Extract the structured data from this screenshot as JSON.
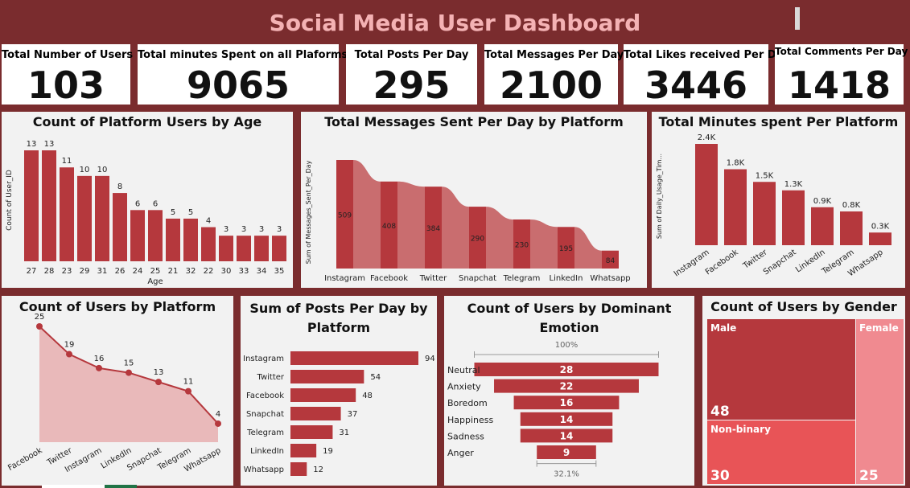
{
  "title": "Social Media User Dashboard",
  "kpis": [
    {
      "label": "Total Number of Users",
      "value": "103"
    },
    {
      "label": "Total minutes Spent on all Plaforms",
      "value": "9065"
    },
    {
      "label": "Total Posts Per Day",
      "value": "295"
    },
    {
      "label": "Total Messages Per Day",
      "value": "2100"
    },
    {
      "label": "Total Likes received Per Day",
      "value": "3446"
    },
    {
      "label": "Total Comments Per Day",
      "value": "1418"
    }
  ],
  "colors": {
    "bar": "#b5383d",
    "ribbon": "#c96d6f",
    "area": "#e9b9ba",
    "line": "#b5383d",
    "male": "#b5383d",
    "female": "#f08a90",
    "nonbinary": "#e85457"
  },
  "chart_data": [
    {
      "type": "bar",
      "title": "Count of Platform Users by Age",
      "xlabel": "Age",
      "ylabel": "Count of User_ID",
      "categories": [
        "27",
        "28",
        "23",
        "29",
        "31",
        "26",
        "24",
        "25",
        "21",
        "32",
        "22",
        "30",
        "33",
        "34",
        "35"
      ],
      "values": [
        13,
        13,
        11,
        10,
        10,
        8,
        6,
        6,
        5,
        5,
        4,
        3,
        3,
        3,
        3
      ]
    },
    {
      "type": "bar",
      "title": "Total Messages Sent Per Day by Platform",
      "ylabel": "Sum of Messages_Sent_Per_Day",
      "categories": [
        "Instagram",
        "Facebook",
        "Twitter",
        "Snapchat",
        "Telegram",
        "LinkedIn",
        "Whatsapp"
      ],
      "values": [
        509,
        408,
        384,
        290,
        230,
        195,
        84
      ]
    },
    {
      "type": "bar",
      "title": "Total Minutes spent Per Platform",
      "ylabel": "Sum of Daily_Usage_Tim...",
      "categories": [
        "Instagram",
        "Facebook",
        "Twitter",
        "Snapchat",
        "LinkedIn",
        "Telegram",
        "Whatsapp"
      ],
      "values": [
        2.4,
        1.8,
        1.5,
        1.3,
        0.9,
        0.8,
        0.3
      ],
      "labels": [
        "2.4K",
        "1.8K",
        "1.5K",
        "1.3K",
        "0.9K",
        "0.8K",
        "0.3K"
      ]
    },
    {
      "type": "area",
      "title": "Count of Users by Platform",
      "categories": [
        "Facebook",
        "Twitter",
        "Instagram",
        "LinkedIn",
        "Snapchat",
        "Telegram",
        "Whatsapp"
      ],
      "values": [
        25,
        19,
        16,
        15,
        13,
        11,
        4
      ]
    },
    {
      "type": "bar",
      "title": "Sum of Posts Per Day by Platform",
      "orientation": "horizontal",
      "categories": [
        "Instagram",
        "Twitter",
        "Facebook",
        "Snapchat",
        "Telegram",
        "LinkedIn",
        "Whatsapp"
      ],
      "values": [
        94,
        54,
        48,
        37,
        31,
        19,
        12
      ]
    },
    {
      "type": "funnel",
      "title": "Count of Users by Dominant Emotion",
      "categories": [
        "Neutral",
        "Anxiety",
        "Boredom",
        "Happiness",
        "Sadness",
        "Anger"
      ],
      "values": [
        28,
        22,
        16,
        14,
        14,
        9
      ],
      "top_pct": "100%",
      "bottom_pct": "32.1%"
    },
    {
      "type": "treemap",
      "title": "Count of Users by Gender",
      "categories": [
        "Male",
        "Non-binary",
        "Female"
      ],
      "values": [
        48,
        30,
        25
      ]
    }
  ]
}
